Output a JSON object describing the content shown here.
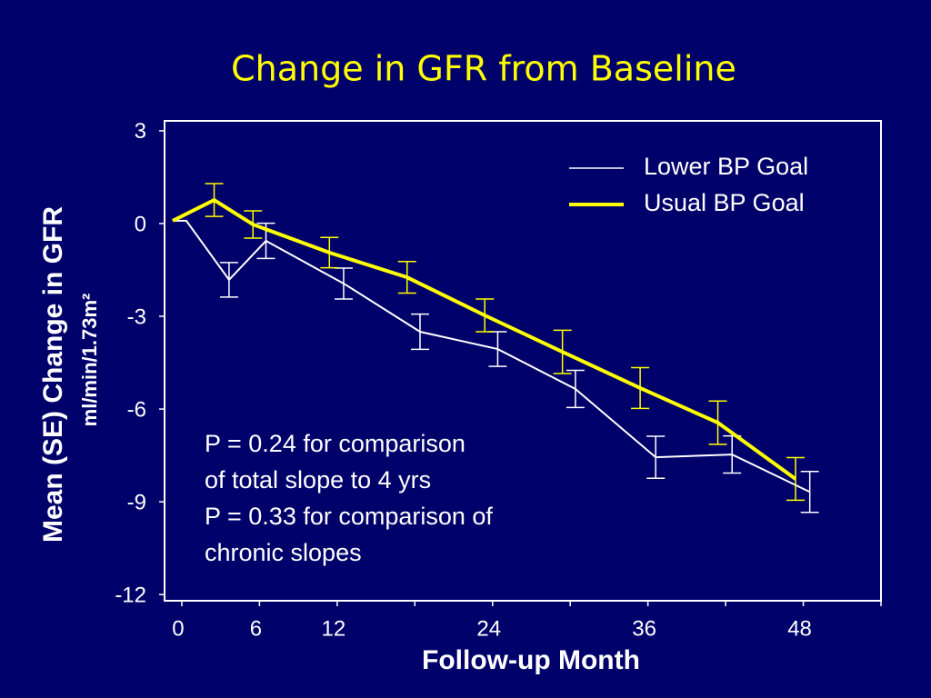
{
  "chart_data": {
    "type": "line",
    "title": "Change in GFR from Baseline",
    "xlabel": "Follow-up Month",
    "ylabel": "Mean (SE) Change in GFR",
    "ylabel2": "ml/min/1.73m²",
    "xlim": [
      -1.33,
      54
    ],
    "ylim": [
      -12.2,
      3.32
    ],
    "xticks": [
      0,
      6,
      12,
      24,
      36,
      48
    ],
    "xminor_ticks": [
      18,
      30,
      42,
      54
    ],
    "yticks": [
      3,
      0,
      -3,
      -6,
      -9,
      -12
    ],
    "series": [
      {
        "name": "Lower BP Goal",
        "color": "#ffffff",
        "x": [
          -0.7,
          0.35,
          3.65,
          6.5,
          12.5,
          18.4,
          24.4,
          30.4,
          36.6,
          42.5,
          48.5
        ],
        "values": [
          0.09,
          0.09,
          -1.82,
          -0.56,
          -1.94,
          -3.5,
          -4.06,
          -5.35,
          -7.56,
          -7.47,
          -8.68
        ],
        "errors": [
          null,
          null,
          0.56,
          0.57,
          0.5,
          0.57,
          0.56,
          0.6,
          0.68,
          0.6,
          0.66
        ]
      },
      {
        "name": "Usual BP Goal",
        "color": "#ffff00",
        "x": [
          -0.7,
          2.5,
          5.5,
          11.4,
          17.4,
          23.4,
          29.4,
          35.4,
          41.4,
          47.4
        ],
        "values": [
          0.09,
          0.76,
          -0.03,
          -0.94,
          -1.74,
          -2.97,
          -4.15,
          -5.32,
          -6.44,
          -8.26
        ],
        "errors": [
          null,
          0.53,
          0.44,
          0.49,
          0.51,
          0.53,
          0.7,
          0.66,
          0.7,
          0.69
        ]
      }
    ],
    "annotation": [
      "P = 0.24 for comparison",
      "of total slope to 4 yrs",
      "P = 0.33 for comparison of",
      "chronic slopes"
    ],
    "legend": "upper right"
  }
}
